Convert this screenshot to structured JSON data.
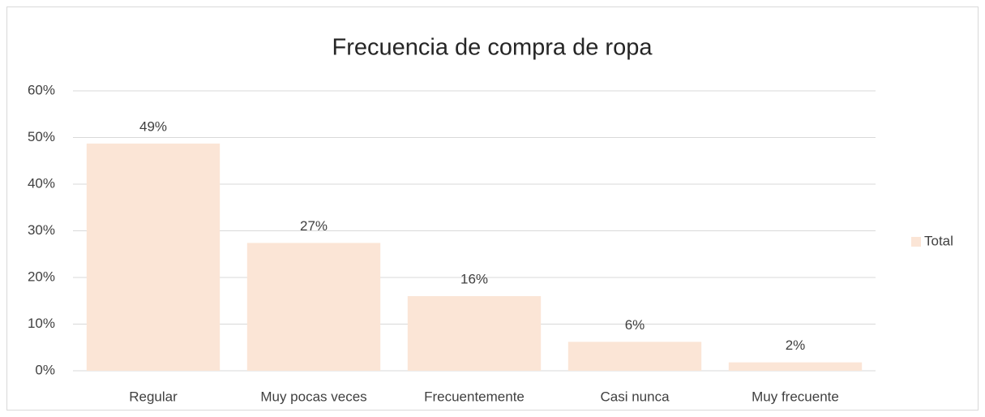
{
  "chart_data": {
    "type": "bar",
    "title": "Frecuencia de compra de ropa",
    "categories": [
      "Regular",
      "Muy pocas veces",
      "Frecuentemente",
      "Casi nunca",
      "Muy frecuente"
    ],
    "series": [
      {
        "name": "Total",
        "color": "#fbe5d6",
        "values": [
          48.7,
          27.4,
          16,
          6.2,
          1.8
        ],
        "value_labels": [
          "49%",
          "27%",
          "16%",
          "6%",
          "2%"
        ]
      }
    ],
    "ylim": [
      0,
      60
    ],
    "yticks": [
      {
        "value": 0,
        "label": "0%"
      },
      {
        "value": 10,
        "label": "10%"
      },
      {
        "value": 20,
        "label": "20%"
      },
      {
        "value": 30,
        "label": "30%"
      },
      {
        "value": 40,
        "label": "40%"
      },
      {
        "value": 50,
        "label": "50%"
      },
      {
        "value": 60,
        "label": "60%"
      }
    ],
    "grid": true,
    "legend": "right"
  }
}
